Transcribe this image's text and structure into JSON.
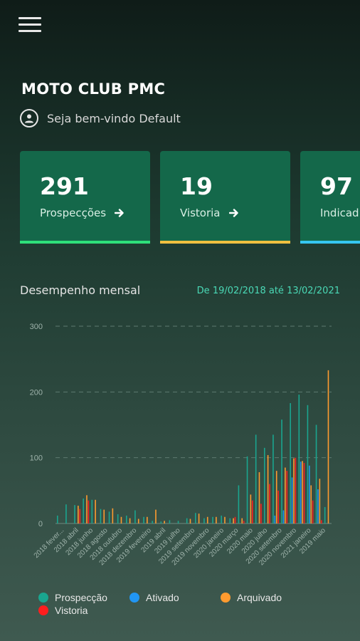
{
  "header": {
    "title": "MOTO CLUB PMC",
    "welcome": "Seja bem-vindo Default"
  },
  "cards": [
    {
      "value": "291",
      "label": "Prospecções",
      "bar_color": "#2ee07a"
    },
    {
      "value": "19",
      "label": "Vistoria",
      "bar_color": "#f0c040"
    },
    {
      "value": "97",
      "label": "Indicad",
      "bar_color": "#36c6f0"
    }
  ],
  "performance": {
    "title": "Desempenho mensal",
    "date_range": "De 19/02/2018 até 13/02/2021"
  },
  "chart_data": {
    "type": "bar",
    "ylim": [
      0,
      300
    ],
    "yticks": [
      "0",
      "100",
      "200",
      "300"
    ],
    "grid": true,
    "legend_placement": "bottom",
    "x_tick_labels": [
      "2018 fever...",
      "2018 abril",
      "2018 junho",
      "2018 agosto",
      "2018 outubro",
      "2018 dezembro",
      "2019 fevereiro",
      "2019 abril",
      "2019 julho",
      "2019 setembro",
      "2019 novembro",
      "2020 janeiro",
      "2020 março",
      "2020 maio",
      "2020 julho",
      "2020 setembro",
      "2020 novembro",
      "2021 janeiro",
      "2019 maio"
    ],
    "series": [
      {
        "name": "Prospecção",
        "color": "#1aa58f",
        "values": [
          12,
          29,
          28,
          38,
          36,
          22,
          18,
          14,
          12,
          20,
          10,
          4,
          3,
          5,
          4,
          8,
          16,
          8,
          10,
          12,
          8,
          58,
          102,
          135,
          115,
          135,
          158,
          183,
          196,
          180,
          150,
          25
        ]
      },
      {
        "name": "Ativado",
        "color": "#2196f3",
        "values": [
          0,
          0,
          0,
          0,
          0,
          0,
          0,
          0,
          0,
          0,
          0,
          0,
          0,
          0,
          0,
          0,
          0,
          0,
          0,
          0,
          0,
          0,
          0,
          0,
          0,
          12,
          20,
          70,
          94,
          88,
          52,
          0
        ]
      },
      {
        "name": "Arquivado",
        "color": "#ff9b2f",
        "values": [
          0,
          0,
          27,
          43,
          36,
          21,
          23,
          10,
          8,
          7,
          10,
          21,
          4,
          0,
          0,
          7,
          15,
          10,
          10,
          10,
          8,
          8,
          44,
          78,
          104,
          80,
          85,
          99,
          95,
          58,
          68,
          233
        ]
      },
      {
        "name": "Vistoria",
        "color": "#ff1e1e",
        "values": [
          0,
          0,
          22,
          35,
          0,
          0,
          0,
          0,
          0,
          0,
          0,
          0,
          0,
          0,
          0,
          0,
          0,
          0,
          0,
          0,
          10,
          4,
          35,
          30,
          60,
          50,
          80,
          100,
          92,
          35,
          5,
          0
        ]
      }
    ]
  }
}
